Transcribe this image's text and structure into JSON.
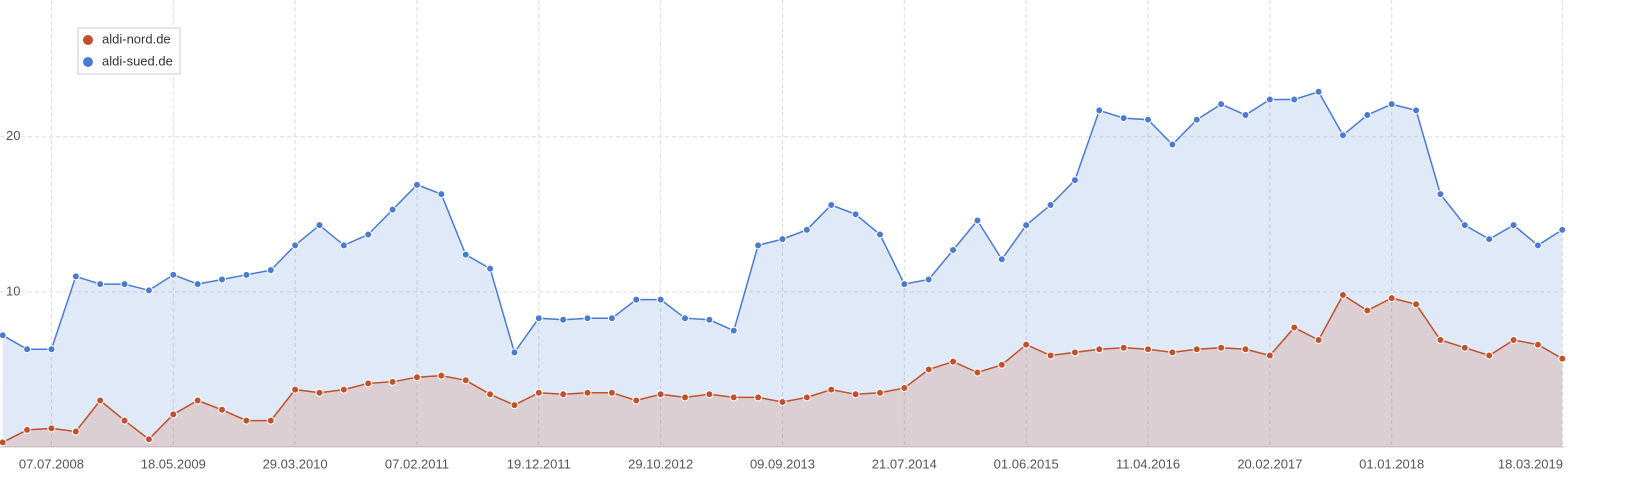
{
  "chart_data": {
    "type": "line",
    "x": [
      "03.03.2008",
      "05.05.2008",
      "07.07.2008",
      "08.09.2008",
      "10.11.2008",
      "12.01.2009",
      "16.03.2009",
      "18.05.2009",
      "20.07.2009",
      "21.09.2009",
      "23.11.2009",
      "25.01.2010",
      "29.03.2010",
      "31.05.2010",
      "02.08.2010",
      "04.10.2010",
      "06.12.2010",
      "07.02.2011",
      "11.04.2011",
      "13.06.2011",
      "15.08.2011",
      "17.10.2011",
      "19.12.2011",
      "20.02.2012",
      "23.04.2012",
      "25.06.2012",
      "27.08.2012",
      "29.10.2012",
      "31.12.2012",
      "04.03.2013",
      "06.05.2013",
      "08.07.2013",
      "09.09.2013",
      "11.11.2013",
      "13.01.2014",
      "17.03.2014",
      "19.05.2014",
      "21.07.2014",
      "22.09.2014",
      "24.11.2014",
      "26.01.2015",
      "30.03.2015",
      "01.06.2015",
      "03.08.2015",
      "05.10.2015",
      "07.12.2015",
      "08.02.2016",
      "11.04.2016",
      "13.06.2016",
      "15.08.2016",
      "17.10.2016",
      "19.12.2016",
      "20.02.2017",
      "24.04.2017",
      "26.06.2017",
      "28.08.2017",
      "30.10.2017",
      "01.01.2018",
      "05.03.2018",
      "07.05.2018",
      "09.07.2018",
      "10.09.2018",
      "12.11.2018",
      "14.01.2019",
      "18.03.2019"
    ],
    "series": [
      {
        "name": "aldi-sued.de",
        "color": "#4a7bd0",
        "values": [
          7.2,
          6.3,
          6.3,
          11.0,
          10.5,
          10.5,
          10.1,
          11.1,
          10.5,
          10.8,
          11.1,
          11.4,
          13.0,
          14.3,
          13.0,
          13.7,
          15.3,
          16.9,
          16.3,
          12.4,
          11.5,
          6.1,
          8.3,
          8.2,
          8.3,
          8.3,
          9.5,
          9.5,
          8.3,
          8.2,
          7.5,
          13.0,
          13.4,
          14.0,
          15.6,
          15.0,
          13.7,
          10.5,
          10.8,
          12.7,
          14.6,
          12.1,
          14.3,
          15.6,
          17.2,
          21.7,
          21.2,
          21.1,
          19.5,
          21.1,
          22.1,
          21.4,
          22.4,
          22.4,
          22.9,
          20.1,
          21.4,
          22.1,
          21.7,
          16.3,
          14.3,
          13.4,
          14.3,
          13.0,
          14.0
        ]
      },
      {
        "name": "aldi-nord.de",
        "color": "#c1512b",
        "values": [
          0.3,
          1.1,
          1.2,
          1.0,
          3.0,
          1.7,
          0.5,
          2.1,
          3.0,
          2.4,
          1.7,
          1.7,
          3.7,
          3.5,
          3.7,
          4.1,
          4.2,
          4.5,
          4.6,
          4.3,
          3.4,
          2.7,
          3.5,
          3.4,
          3.5,
          3.5,
          3.0,
          3.4,
          3.2,
          3.4,
          3.2,
          3.2,
          2.9,
          3.2,
          3.7,
          3.4,
          3.5,
          3.8,
          5.0,
          5.5,
          4.8,
          5.3,
          6.6,
          5.9,
          6.1,
          6.3,
          6.4,
          6.3,
          6.1,
          6.3,
          6.4,
          6.3,
          5.9,
          7.7,
          6.9,
          9.8,
          8.8,
          9.6,
          9.2,
          6.9,
          6.4,
          5.9,
          6.9,
          6.6,
          5.7
        ]
      }
    ],
    "xlim": [
      "25.02.2008",
      "25.03.2019"
    ],
    "xticks": [
      "07.07.2008",
      "18.05.2009",
      "29.03.2010",
      "07.02.2011",
      "19.12.2011",
      "29.10.2012",
      "09.09.2013",
      "21.07.2014",
      "01.06.2015",
      "11.04.2016",
      "20.02.2017",
      "01.01.2018",
      "18.03.2019"
    ],
    "ylim": [
      0,
      28.3
    ],
    "yticks": [
      10,
      20
    ],
    "grid": true,
    "legend": "top-left"
  }
}
